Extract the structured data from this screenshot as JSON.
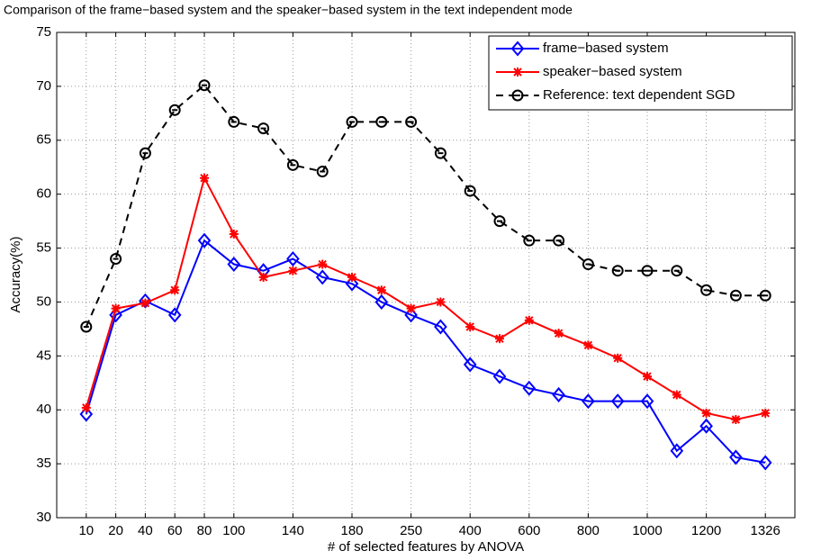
{
  "chart_data": {
    "type": "line",
    "title": "Comparison of the frame−based system and the speaker−based system in the text independent mode",
    "x_label": "# of selected features by ANOVA",
    "y_label": "Accuracy(%)",
    "categories": [
      "10",
      "20",
      "40",
      "60",
      "80",
      "100",
      null,
      "140",
      null,
      "180",
      null,
      "250",
      null,
      "400",
      null,
      "600",
      null,
      "800",
      null,
      "1000",
      null,
      "1200",
      null,
      "1326"
    ],
    "series": [
      {
        "name": "frame−based system",
        "color": "#0000ff",
        "marker": "diamond",
        "linestyle": "solid",
        "values": [
          39.6,
          48.8,
          50.1,
          48.8,
          55.7,
          53.5,
          52.9,
          54.0,
          52.3,
          51.7,
          50.0,
          48.8,
          47.7,
          44.2,
          43.1,
          42.0,
          41.4,
          40.8,
          40.8,
          40.8,
          36.2,
          38.5,
          35.6,
          35.1
        ]
      },
      {
        "name": "speaker−based system",
        "color": "#ff0000",
        "marker": "star",
        "linestyle": "solid",
        "values": [
          40.2,
          49.4,
          49.9,
          51.1,
          61.5,
          56.3,
          52.3,
          52.9,
          53.5,
          52.3,
          51.1,
          49.4,
          50.0,
          47.7,
          46.6,
          48.3,
          47.1,
          46.0,
          44.8,
          43.1,
          41.4,
          39.7,
          39.1,
          39.7
        ]
      },
      {
        "name": "Reference: text dependent SGD",
        "color": "#000000",
        "marker": "circle",
        "linestyle": "dashed",
        "values": [
          47.7,
          54.0,
          63.8,
          67.8,
          70.1,
          66.7,
          66.1,
          62.7,
          62.1,
          66.7,
          66.7,
          66.7,
          63.8,
          60.3,
          57.5,
          55.7,
          55.7,
          53.5,
          52.9,
          52.9,
          52.9,
          51.1,
          50.6,
          50.6
        ]
      }
    ],
    "ylim": [
      30,
      75
    ],
    "yticks": [
      30,
      35,
      40,
      45,
      50,
      55,
      60,
      65,
      70,
      75
    ],
    "grid": true,
    "legend": "upper right"
  }
}
